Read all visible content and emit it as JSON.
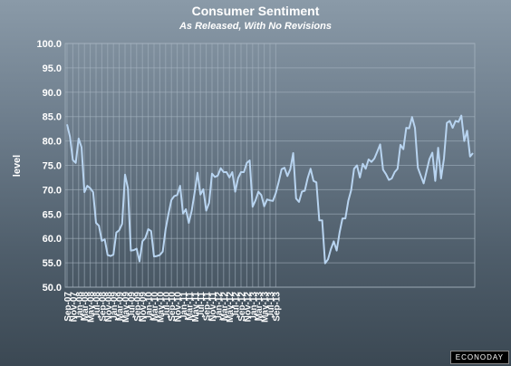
{
  "chart_data": {
    "type": "line",
    "title": "Consumer Sentiment",
    "subtitle": "As Released, With No Revisions",
    "ylabel": "level",
    "xlabel": "",
    "ylim": [
      50,
      100
    ],
    "yticks": [
      "50.0",
      "55.0",
      "60.0",
      "65.0",
      "70.0",
      "75.0",
      "80.0",
      "85.0",
      "90.0",
      "95.0",
      "100.0"
    ],
    "xtick_labels": [
      "Sep-07",
      "Nov-07",
      "Jan-08",
      "Mar-08",
      "May-08",
      "Jul-08",
      "Sep-08",
      "Nov-08",
      "Jan-09",
      "Mar-09",
      "May-09",
      "Jul-09",
      "Sep-09",
      "Nov-09",
      "Jan-10",
      "Mar-10",
      "May-10",
      "Jul-10",
      "Sep-10",
      "Nov-10",
      "Jan-11",
      "Mar-11",
      "May-11",
      "Jul-11",
      "Sep-11",
      "Nov-11",
      "Jan-12",
      "Mar-12",
      "May-12",
      "Jul-12",
      "Sep-12",
      "Nov-12",
      "Jan-13",
      "Mar-13",
      "May-13",
      "Jul-13",
      "Sep-13"
    ],
    "grid": true,
    "line_color": "#b8d4f0",
    "series": [
      {
        "values": [
          83.4,
          80.9,
          76.1,
          75.5,
          80.5,
          78.7,
          69.5,
          70.8,
          70.3,
          69.5,
          63.2,
          62.6,
          59.5,
          59.8,
          56.6,
          56.4,
          56.7,
          61.2,
          61.7,
          63.0,
          73.1,
          70.3,
          57.5,
          57.6,
          57.9,
          55.3,
          59.4,
          60.1,
          61.9,
          61.5,
          56.3,
          56.4,
          56.6,
          57.3,
          61.9,
          65.1,
          67.9,
          68.7,
          68.9,
          70.8,
          65.1,
          66.0,
          63.2,
          65.7,
          69.4,
          73.5,
          69.0,
          70.1,
          65.7,
          67.3,
          73.3,
          72.6,
          72.9,
          74.4,
          73.6,
          73.6,
          72.5,
          73.6,
          69.6,
          72.4,
          73.6,
          73.6,
          75.5,
          76.0,
          66.5,
          67.8,
          69.6,
          68.9,
          66.6,
          68.0,
          67.8,
          67.7,
          69.3,
          71.6,
          74.2,
          74.5,
          72.8,
          74.2,
          77.5,
          68.2,
          67.5,
          69.6,
          69.8,
          72.4,
          74.3,
          71.8,
          71.5,
          63.7,
          63.7,
          54.9,
          55.7,
          57.8,
          59.4,
          57.5,
          61.2,
          64.1,
          64.1,
          67.7,
          69.9,
          74.3,
          75.0,
          72.5,
          75.3,
          74.3,
          76.2,
          75.7,
          76.4,
          77.8,
          79.3,
          74.1,
          73.2,
          72.0,
          72.3,
          73.6,
          74.3,
          79.2,
          78.3,
          82.7,
          82.6,
          84.9,
          82.7,
          74.5,
          72.9,
          71.3,
          73.8,
          76.3,
          77.6,
          71.8,
          78.6,
          72.3,
          76.4,
          83.7,
          84.1,
          82.7,
          84.1,
          83.9,
          85.2,
          80.0,
          82.1,
          76.8,
          77.5
        ]
      }
    ]
  },
  "watermark": "ECONODAY"
}
